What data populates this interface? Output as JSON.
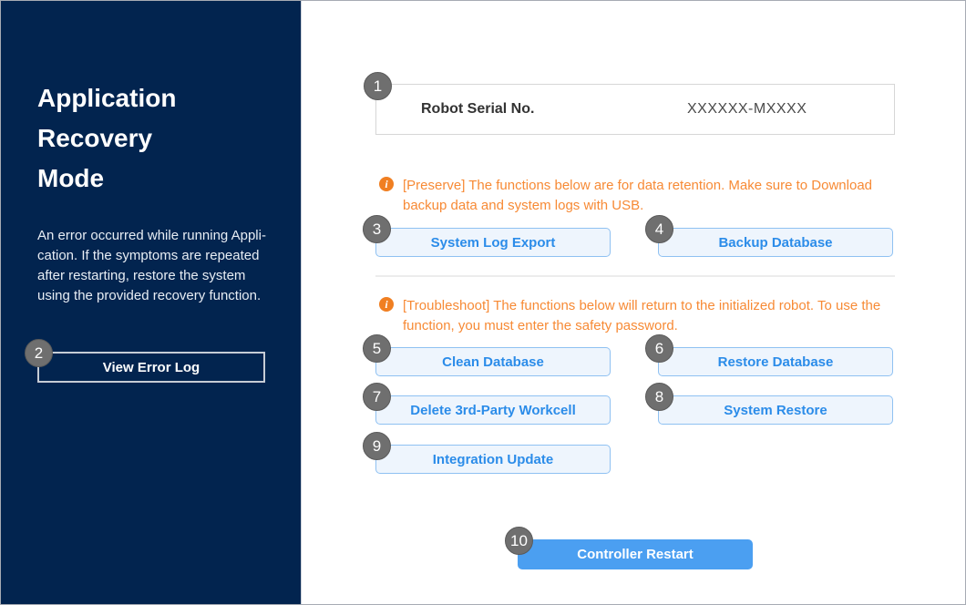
{
  "sidebar": {
    "title_lines": [
      "Application",
      "Recovery",
      "Mode"
    ],
    "description_lines": [
      "An error occurred while running Appli-",
      "cation. If the symptoms are repeated",
      "after restarting, restore the system",
      "using the provided recovery function."
    ],
    "view_error_log": {
      "step": "2",
      "label": "View Error Log"
    }
  },
  "main": {
    "serial": {
      "step": "1",
      "label": "Robot Serial No.",
      "value": "XXXXXX-MXXXX"
    },
    "info_icon_glyph": "i",
    "notices": [
      {
        "text": "[Preserve] The functions below are for data retention. Make sure to Download backup data and system logs with USB."
      },
      {
        "text": "[Troubleshoot] The functions below will return to the initialized robot. To use the function, you must enter the safety password."
      }
    ],
    "preserve_buttons": [
      {
        "step": "3",
        "label": "System Log Export"
      },
      {
        "step": "4",
        "label": "Backup Database"
      }
    ],
    "troubleshoot_buttons": [
      {
        "step": "5",
        "label": "Clean Database"
      },
      {
        "step": "6",
        "label": "Restore Database"
      },
      {
        "step": "7",
        "label": "Delete 3rd-Party Workcell"
      },
      {
        "step": "8",
        "label": "System Restore"
      },
      {
        "step": "9",
        "label": "Integration Update"
      }
    ],
    "restart_button": {
      "step": "10",
      "label": "Controller Restart"
    }
  },
  "colors": {
    "sidebar_bg": "#02244f",
    "accent_blue": "#4b9ff1",
    "light_button_bg": "#eef5fd",
    "light_button_border": "#8fc1f2",
    "light_button_text": "#2b8ce9",
    "notice_orange": "#f78a35",
    "badge_gray": "#6f6f6f"
  }
}
